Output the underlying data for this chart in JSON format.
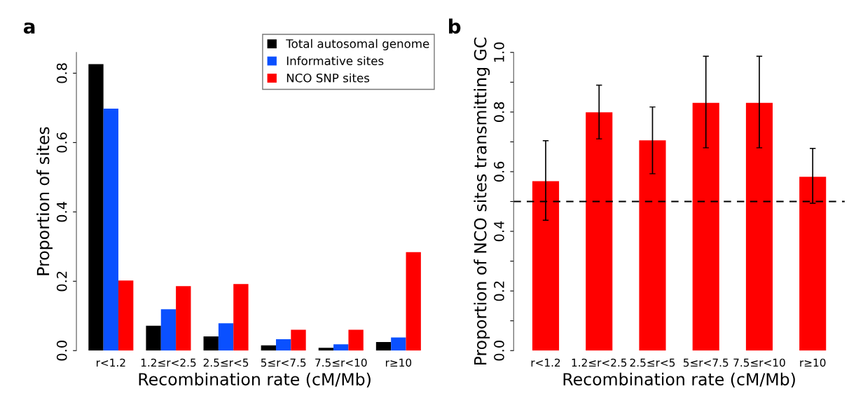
{
  "chart_data": [
    {
      "type": "bar",
      "annotations": [
        "a"
      ],
      "xlabel": "Recombination rate (cM/Mb)",
      "ylabel": "Proportion of sites",
      "categories": [
        "r<1.2",
        "1.2≤r<2.5",
        "2.5≤r<5",
        "5≤r<7.5",
        "7.5≤r<10",
        "r≥10"
      ],
      "series": [
        {
          "name": "Total autosomal genome",
          "color": "#000000",
          "values": [
            0.826,
            0.072,
            0.041,
            0.015,
            0.008,
            0.025
          ]
        },
        {
          "name": "Informative sites",
          "color": "#0a50ff",
          "values": [
            0.698,
            0.119,
            0.079,
            0.033,
            0.018,
            0.038
          ]
        },
        {
          "name": "NCO SNP sites",
          "color": "#ff0000",
          "values": [
            0.202,
            0.186,
            0.192,
            0.06,
            0.06,
            0.284
          ]
        }
      ],
      "ylim": [
        0,
        0.86
      ],
      "yticks": [
        {
          "value": 0,
          "label": "0.0"
        },
        0.2,
        0.4,
        0.6,
        0.8
      ],
      "legend": "top right",
      "grid": false
    },
    {
      "type": "bar",
      "annotations": [
        "b"
      ],
      "xlabel": "Recombination rate (cM/Mb)",
      "ylabel": "Proportion of NCO sites transmitting GC",
      "categories": [
        "r<1.2",
        "1.2≤r<2.5",
        "2.5≤r<5",
        "5≤r<7.5",
        "7.5≤r<10",
        "r≥10"
      ],
      "series": [
        {
          "color": "#ff0000",
          "values": [
            0.568,
            0.799,
            0.705,
            0.831,
            0.831,
            0.583
          ],
          "errors": [
            [
              0.437,
              0.704
            ],
            [
              0.71,
              0.89
            ],
            [
              0.593,
              0.817
            ],
            [
              0.68,
              0.987
            ],
            [
              0.68,
              0.987
            ],
            [
              0.494,
              0.678
            ]
          ]
        }
      ],
      "ylim": [
        0,
        1.0
      ],
      "yticks": [
        {
          "value": 0,
          "label": "0.0"
        },
        {
          "value": 0.1,
          "label": null
        },
        0.2,
        {
          "value": 0.3,
          "label": null
        },
        0.4,
        {
          "value": 0.5,
          "label": null
        },
        0.6,
        {
          "value": 0.7,
          "label": null
        },
        0.8,
        {
          "value": 0.9,
          "label": null
        },
        {
          "value": 1.0,
          "label": "1.0"
        }
      ],
      "ref_lines": [
        {
          "axis": "y",
          "value": 0.5,
          "line_style": "dashed",
          "color": "#000000"
        }
      ],
      "grid": false
    }
  ]
}
